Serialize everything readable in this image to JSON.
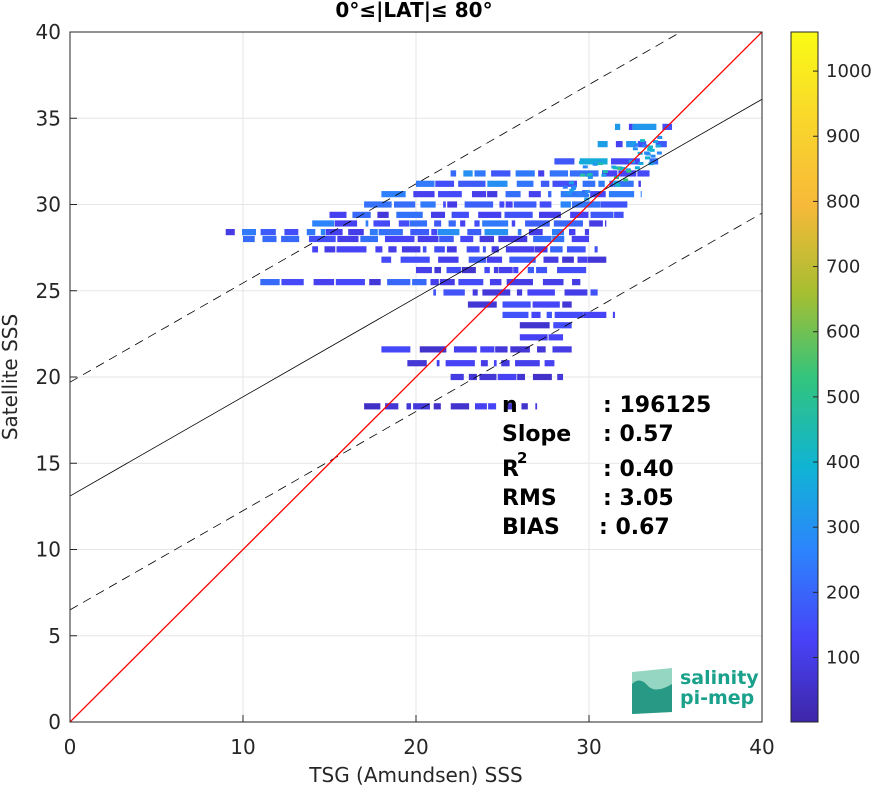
{
  "chart_data": {
    "type": "heatmap",
    "title": "0°≤|LAT|≤ 80°",
    "xlabel": "TSG (Amundsen) SSS",
    "ylabel": "Satellite SSS",
    "xlim": [
      0,
      40
    ],
    "ylim": [
      0,
      40
    ],
    "x_ticks": [
      "0",
      "10",
      "20",
      "30",
      "40"
    ],
    "y_ticks": [
      "0",
      "5",
      "10",
      "15",
      "20",
      "25",
      "30",
      "35",
      "40"
    ],
    "grid": true,
    "lines": {
      "one_to_one": {
        "intercept": 0,
        "slope": 1,
        "color": "#ff0000"
      },
      "regression": {
        "intercept": 13.1,
        "slope": 0.575,
        "color": "#000000"
      },
      "upper_envelope": {
        "intercept": 19.7,
        "slope": 0.575,
        "style": "dashed"
      },
      "lower_envelope": {
        "intercept": 6.5,
        "slope": 0.575,
        "style": "dashed"
      }
    },
    "density_bands": [
      {
        "y": 34.5,
        "x0": 31.5,
        "x1": 34.8,
        "level": 250
      },
      {
        "y": 33.5,
        "x0": 30.5,
        "x1": 34.5,
        "level": 250
      },
      {
        "y": 32.5,
        "x0": 28.0,
        "x1": 34.0,
        "level": 280
      },
      {
        "y": 31.8,
        "x0": 22.0,
        "x1": 33.5,
        "level": 220
      },
      {
        "y": 31.2,
        "x0": 20.0,
        "x1": 33.0,
        "level": 220
      },
      {
        "y": 30.6,
        "x0": 18.0,
        "x1": 33.0,
        "level": 200
      },
      {
        "y": 30.0,
        "x0": 17.0,
        "x1": 32.5,
        "level": 200
      },
      {
        "y": 29.4,
        "x0": 15.0,
        "x1": 32.0,
        "level": 180
      },
      {
        "y": 28.9,
        "x0": 14.0,
        "x1": 31.0,
        "level": 200
      },
      {
        "y": 28.4,
        "x0": 9.0,
        "x1": 30.0,
        "level": 220
      },
      {
        "y": 28.0,
        "x0": 10.0,
        "x1": 30.0,
        "level": 180
      },
      {
        "y": 27.4,
        "x0": 14.0,
        "x1": 30.5,
        "level": 150
      },
      {
        "y": 26.8,
        "x0": 18.0,
        "x1": 31.0,
        "level": 150
      },
      {
        "y": 26.2,
        "x0": 20.0,
        "x1": 30.0,
        "level": 140
      },
      {
        "y": 25.5,
        "x0": 11.0,
        "x1": 29.5,
        "level": 160
      },
      {
        "y": 24.9,
        "x0": 21.0,
        "x1": 30.5,
        "level": 130
      },
      {
        "y": 24.2,
        "x0": 23.0,
        "x1": 29.0,
        "level": 130
      },
      {
        "y": 23.6,
        "x0": 25.0,
        "x1": 31.5,
        "level": 130
      },
      {
        "y": 23.0,
        "x0": 26.0,
        "x1": 29.0,
        "level": 120
      },
      {
        "y": 22.3,
        "x0": 26.0,
        "x1": 28.5,
        "level": 120
      },
      {
        "y": 21.6,
        "x0": 18.0,
        "x1": 29.0,
        "level": 110
      },
      {
        "y": 20.8,
        "x0": 19.5,
        "x1": 28.0,
        "level": 100
      },
      {
        "y": 20.0,
        "x0": 22.0,
        "x1": 28.5,
        "level": 100
      },
      {
        "y": 18.3,
        "x0": 17.0,
        "x1": 27.0,
        "level": 100
      }
    ],
    "hotspots": [
      {
        "x": 30.2,
        "y": 32.2,
        "level": 450
      },
      {
        "x": 31.5,
        "y": 31.8,
        "level": 520
      },
      {
        "x": 32.8,
        "y": 32.8,
        "level": 420
      },
      {
        "x": 33.3,
        "y": 33.6,
        "level": 380
      },
      {
        "x": 29.0,
        "y": 31.0,
        "level": 340
      }
    ],
    "stats": {
      "n": {
        "label": "n",
        "value": ": 196125"
      },
      "slope": {
        "label": "Slope",
        "value": ": 0.57"
      },
      "r2": {
        "label": "R",
        "sup": "2",
        "value": ": 0.40"
      },
      "rms": {
        "label": "RMS",
        "value": ": 3.05"
      },
      "bias": {
        "label": "BIAS",
        "value": ": 0.67"
      }
    },
    "colorbar": {
      "range": [
        1,
        1060
      ],
      "ticks": [
        "100",
        "200",
        "300",
        "400",
        "500",
        "600",
        "700",
        "800",
        "900",
        "1000"
      ],
      "colors": [
        "#3e26a8",
        "#4743f8",
        "#2c85fc",
        "#10b4d4",
        "#33c47c",
        "#a5be31",
        "#f7b939",
        "#f9d62c",
        "#f9fb15"
      ]
    }
  },
  "logo": {
    "line1": "salinity",
    "line2": "pi-mep"
  }
}
